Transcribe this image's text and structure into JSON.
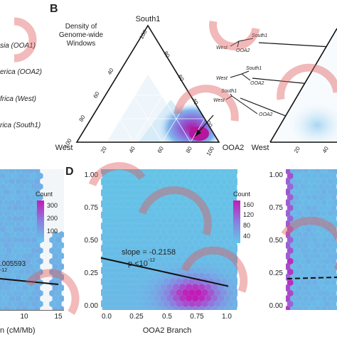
{
  "panel_labels": {
    "b": "B",
    "d": "D"
  },
  "legend_a": {
    "items": [
      "sia (OOA1)",
      "erica (OOA2)",
      "frica (West)",
      "rica (South1)"
    ]
  },
  "ternary": {
    "density_title_line1": "Density of",
    "density_title_line2": "Genome-wide",
    "density_title_line3": "Windows",
    "vertex_top": "South1",
    "vertex_left": "West",
    "vertex_right": "OOA2",
    "ticks": [
      "20",
      "40",
      "60",
      "80",
      "100"
    ]
  },
  "trees": [
    {
      "west": "West",
      "south1": "South1",
      "ooa2": "OOA2"
    },
    {
      "west": "West",
      "south1": "South1",
      "ooa2": "OOA2"
    },
    {
      "west": "West",
      "south1": "South1",
      "ooa2": "OOA2"
    }
  ],
  "right_ternary_vertex": "West",
  "panel_c_partial": {
    "count_title": "Count",
    "count_ticks": [
      "300",
      "200",
      "100"
    ],
    "slope_fragment": ".005593",
    "p_fragment": "-12",
    "x_ticks": [
      "10",
      "15"
    ],
    "x_label_fragment": "n (cM/Mb)"
  },
  "panel_d": {
    "count_title": "Count",
    "count_ticks": [
      "160",
      "120",
      "80",
      "40"
    ],
    "slope_text": "slope = -0.2158",
    "p_text": "p <10",
    "p_exp": "-12",
    "x_label": "OOA2 Branch",
    "x_ticks": [
      "0.0",
      "0.25",
      "0.5",
      "0.75",
      "1.0"
    ],
    "y_ticks": [
      "1.00",
      "0.75",
      "0.50",
      "0.25",
      "0.00"
    ]
  },
  "colors": {
    "low": "#62c8e8",
    "mid": "#8a7fe0",
    "high": "#c21bb8",
    "watermark": "#e05a5a"
  },
  "chart_data": [
    {
      "type": "heatmap",
      "panel": "D",
      "title": "",
      "xlabel": "OOA2 Branch",
      "ylabel": "",
      "xlim": [
        0,
        1
      ],
      "ylim": [
        0,
        1
      ],
      "grid": true,
      "legend": {
        "title": "Count",
        "ticks": [
          160,
          120,
          80,
          40
        ],
        "placement": "top-right"
      },
      "regression": {
        "slope": -0.2158,
        "intercept": 0.36,
        "label": "slope = -0.2158"
      }
    }
  ]
}
